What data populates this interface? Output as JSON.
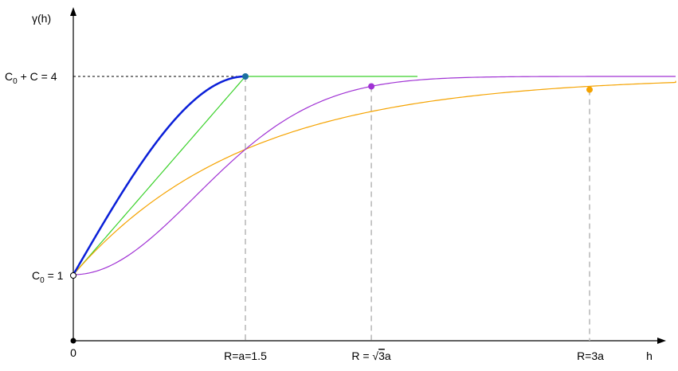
{
  "chart_data": {
    "type": "line",
    "title": "",
    "xlabel": "h",
    "ylabel": "γ(h)",
    "xlim": [
      0,
      5.7
    ],
    "ylim": [
      0,
      4.2
    ],
    "grid": false,
    "nugget": 1,
    "sill": 4,
    "a": 1.5,
    "series": [
      {
        "model": "spherical",
        "color": "#0a1fd8",
        "x_from": 0,
        "x_to": 1.5,
        "width": 2.5
      },
      {
        "model": "linear-bounded",
        "color": "#3ad12a",
        "x_from": 0,
        "x_to": 3.0,
        "width": 1.2
      },
      {
        "model": "gaussian",
        "color": "#a032d4",
        "x_from": 0,
        "x_to": 5.7,
        "width": 1.2
      },
      {
        "model": "exponential",
        "color": "#f5a300",
        "x_from": 0,
        "x_to": 5.7,
        "width": 1.2
      }
    ],
    "marked_points": [
      {
        "x": 1.5,
        "y": 4.0,
        "color": "#1a6fa0"
      },
      {
        "x": 2.598,
        "y": 3.85,
        "color": "#a032d4"
      },
      {
        "x": 4.5,
        "y": 3.8,
        "color": "#f5a300"
      }
    ],
    "range_lines_x": [
      1.5,
      2.598,
      4.5
    ],
    "sill_line_color": "#000000",
    "origin_label": "0",
    "y_tick_labels": {
      "nugget": {
        "main": "C",
        "sub": "0",
        "rest": " = 1"
      },
      "sill": {
        "main": "C",
        "sub": "0",
        "rest": " + C = 4"
      }
    },
    "x_tick_labels": {
      "r1": "R=a=1.5",
      "r2_pre": "R = ",
      "r2_sqrt": "√",
      "r2_num": "3",
      "r2_post": "a",
      "r3": "R=3a"
    }
  }
}
